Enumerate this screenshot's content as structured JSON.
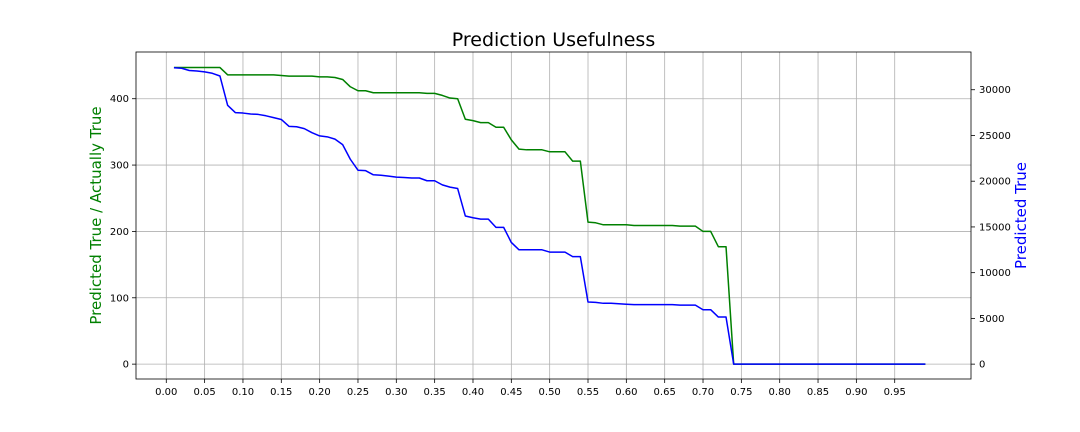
{
  "chart_data": {
    "type": "line",
    "title": "Prediction Usefulness",
    "ylabel_left": "Predicted True / Actually True",
    "ylabel_right": "Predicted True",
    "xlim": [
      -0.0395,
      1.0495
    ],
    "ylim_left": [
      -22.4,
      470.4
    ],
    "ylim_right": [
      -1625,
      34125
    ],
    "x_ticks": [
      0.0,
      0.05,
      0.1,
      0.15,
      0.2,
      0.25,
      0.3,
      0.35,
      0.4,
      0.45,
      0.5,
      0.55,
      0.6,
      0.65,
      0.7,
      0.75,
      0.8,
      0.85,
      0.9,
      0.95
    ],
    "x_tick_labels": [
      "0.00",
      "0.05",
      "0.10",
      "0.15",
      "0.20",
      "0.25",
      "0.30",
      "0.35",
      "0.40",
      "0.45",
      "0.50",
      "0.55",
      "0.60",
      "0.65",
      "0.70",
      "0.75",
      "0.80",
      "0.85",
      "0.90",
      "0.95"
    ],
    "y_left_ticks": [
      0,
      100,
      200,
      300,
      400
    ],
    "y_left_tick_labels": [
      "0",
      "100",
      "200",
      "300",
      "400"
    ],
    "y_right_ticks": [
      0,
      5000,
      10000,
      15000,
      20000,
      25000,
      30000
    ],
    "y_right_tick_labels": [
      "0",
      "5000",
      "10000",
      "15000",
      "20000",
      "25000",
      "30000"
    ],
    "grid": true,
    "colors": {
      "left_series": "#008000",
      "right_series": "#0000ff"
    },
    "series": [
      {
        "axis": "left",
        "color": "#008000",
        "x": [
          0.01,
          0.02,
          0.03,
          0.04,
          0.05,
          0.06,
          0.07,
          0.08,
          0.09,
          0.1,
          0.11,
          0.12,
          0.13,
          0.14,
          0.15,
          0.16,
          0.17,
          0.18,
          0.19,
          0.2,
          0.21,
          0.22,
          0.23,
          0.24,
          0.25,
          0.26,
          0.27,
          0.28,
          0.29,
          0.3,
          0.31,
          0.32,
          0.33,
          0.34,
          0.35,
          0.36,
          0.37,
          0.38,
          0.39,
          0.4,
          0.41,
          0.42,
          0.43,
          0.44,
          0.45,
          0.46,
          0.47,
          0.48,
          0.49,
          0.5,
          0.51,
          0.52,
          0.53,
          0.54,
          0.55,
          0.56,
          0.57,
          0.58,
          0.59,
          0.6,
          0.61,
          0.62,
          0.63,
          0.64,
          0.65,
          0.66,
          0.67,
          0.68,
          0.69,
          0.7,
          0.71,
          0.72,
          0.73,
          0.74,
          0.75,
          0.76,
          0.77,
          0.78,
          0.79,
          0.8,
          0.81,
          0.82,
          0.83,
          0.84,
          0.85,
          0.86,
          0.87,
          0.88,
          0.89,
          0.9,
          0.91,
          0.92,
          0.93,
          0.94,
          0.95,
          0.96,
          0.97,
          0.98,
          0.99
        ],
        "y": [
          447,
          447,
          447,
          447,
          447,
          447,
          447,
          436,
          436,
          436,
          436,
          436,
          436,
          436,
          435,
          434,
          434,
          434,
          434,
          433,
          433,
          432,
          429,
          418,
          412,
          412,
          409,
          409,
          409,
          409,
          409,
          409,
          409,
          408,
          408,
          405,
          401,
          400,
          369,
          367,
          364,
          364,
          357,
          357,
          338,
          324,
          323,
          323,
          323,
          320,
          320,
          320,
          306,
          306,
          214,
          213,
          210,
          210,
          210,
          210,
          209,
          209,
          209,
          209,
          209,
          209,
          208,
          208,
          208,
          200,
          200,
          177,
          177,
          0,
          0,
          0,
          0,
          0,
          0,
          0,
          0,
          0,
          0,
          0,
          0,
          0,
          0,
          0,
          0,
          0,
          0,
          0,
          0,
          0,
          0,
          0,
          0,
          0,
          0
        ]
      },
      {
        "axis": "right",
        "color": "#0000ff",
        "x": [
          0.01,
          0.02,
          0.03,
          0.04,
          0.05,
          0.06,
          0.07,
          0.08,
          0.09,
          0.1,
          0.11,
          0.12,
          0.13,
          0.14,
          0.15,
          0.16,
          0.17,
          0.18,
          0.19,
          0.2,
          0.21,
          0.22,
          0.23,
          0.24,
          0.25,
          0.26,
          0.27,
          0.28,
          0.29,
          0.3,
          0.31,
          0.32,
          0.33,
          0.34,
          0.35,
          0.36,
          0.37,
          0.38,
          0.39,
          0.4,
          0.41,
          0.42,
          0.43,
          0.44,
          0.45,
          0.46,
          0.47,
          0.48,
          0.49,
          0.5,
          0.51,
          0.52,
          0.53,
          0.54,
          0.55,
          0.56,
          0.57,
          0.58,
          0.59,
          0.6,
          0.61,
          0.62,
          0.63,
          0.64,
          0.65,
          0.66,
          0.67,
          0.68,
          0.69,
          0.7,
          0.71,
          0.72,
          0.73,
          0.74,
          0.75,
          0.76,
          0.77,
          0.78,
          0.79,
          0.8,
          0.81,
          0.82,
          0.83,
          0.84,
          0.85,
          0.86,
          0.87,
          0.88,
          0.89,
          0.9,
          0.91,
          0.92,
          0.93,
          0.94,
          0.95,
          0.96,
          0.97,
          0.98,
          0.99
        ],
        "y": [
          32400,
          32350,
          32100,
          32050,
          31950,
          31800,
          31500,
          28300,
          27500,
          27450,
          27350,
          27300,
          27150,
          26950,
          26750,
          26000,
          25950,
          25750,
          25300,
          24950,
          24850,
          24600,
          24000,
          22400,
          21200,
          21150,
          20700,
          20650,
          20550,
          20450,
          20400,
          20350,
          20350,
          20050,
          20050,
          19600,
          19350,
          19200,
          16200,
          16000,
          15850,
          15850,
          14950,
          14950,
          13300,
          12500,
          12500,
          12500,
          12500,
          12250,
          12250,
          12250,
          11750,
          11750,
          6800,
          6750,
          6650,
          6650,
          6600,
          6550,
          6500,
          6500,
          6500,
          6500,
          6500,
          6500,
          6450,
          6450,
          6450,
          5950,
          5950,
          5150,
          5150,
          0,
          0,
          0,
          0,
          0,
          0,
          0,
          0,
          0,
          0,
          0,
          0,
          0,
          0,
          0,
          0,
          0,
          0,
          0,
          0,
          0,
          0,
          0,
          0,
          0,
          0
        ]
      }
    ]
  }
}
